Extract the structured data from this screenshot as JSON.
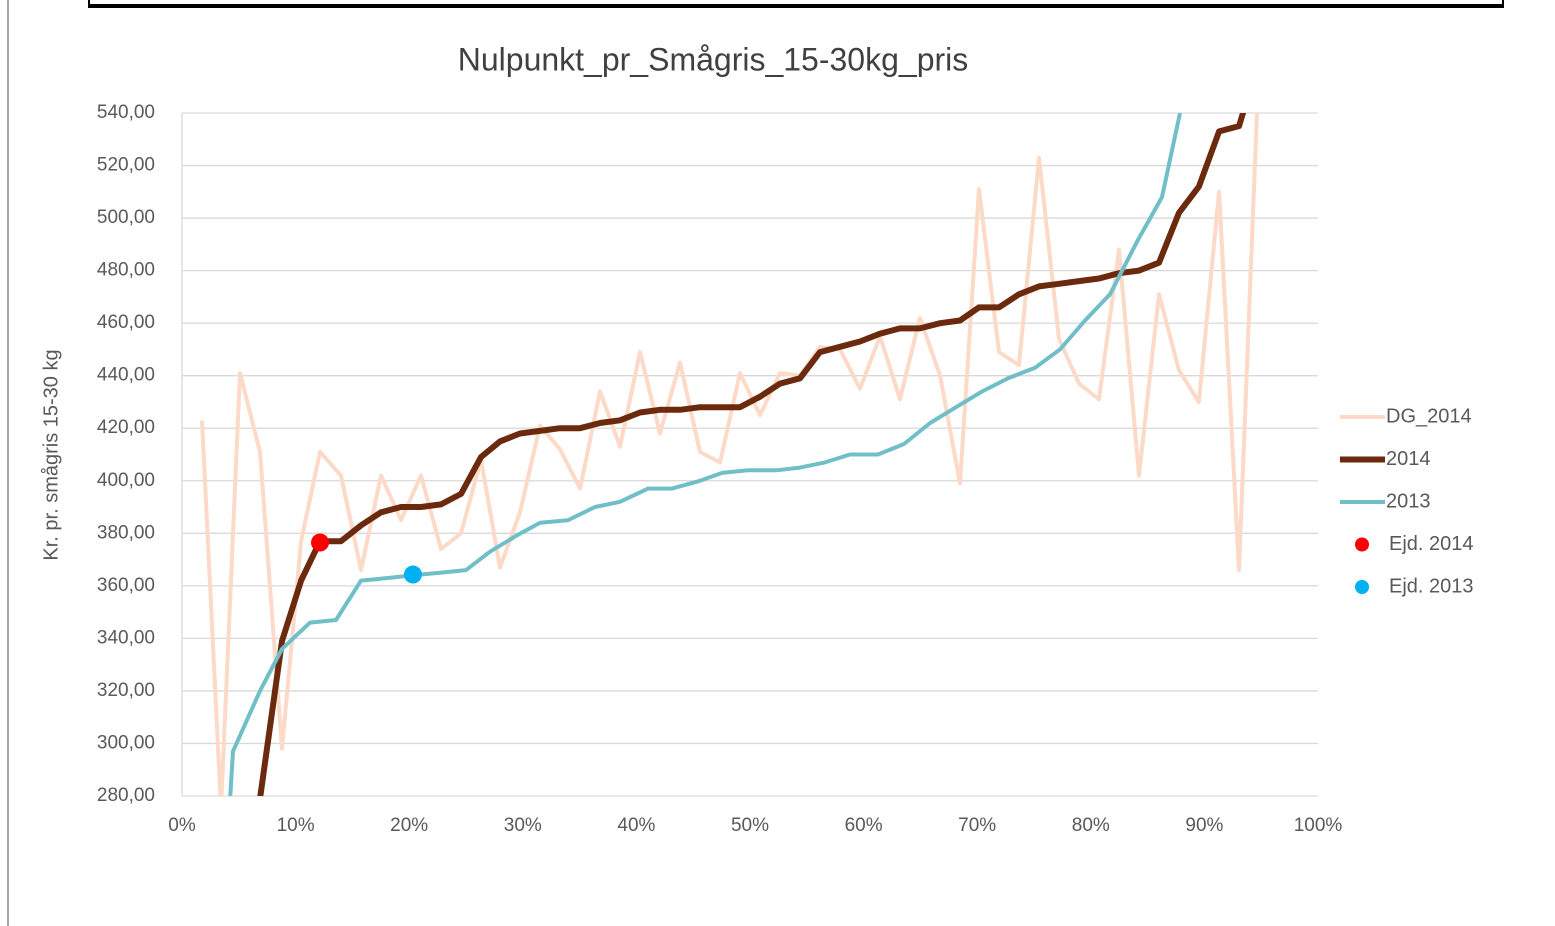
{
  "chart_data": {
    "type": "line",
    "title": "Nulpunkt_pr_Smågris_15-30kg_pris",
    "y_label": "Kr. pr. smågris 15-30 kg",
    "xlim": [
      0,
      100
    ],
    "xticks": [
      {
        "value": 0,
        "label": "0%"
      },
      {
        "value": 10,
        "label": "10%"
      },
      {
        "value": 20,
        "label": "20%"
      },
      {
        "value": 30,
        "label": "30%"
      },
      {
        "value": 40,
        "label": "40%"
      },
      {
        "value": 50,
        "label": "50%"
      },
      {
        "value": 60,
        "label": "60%"
      },
      {
        "value": 70,
        "label": "70%"
      },
      {
        "value": 80,
        "label": "80%"
      },
      {
        "value": 90,
        "label": "90%"
      },
      {
        "value": 100,
        "label": "100%"
      }
    ],
    "ylim": [
      280,
      540
    ],
    "yticks": [
      {
        "value": 280,
        "label": "280,00"
      },
      {
        "value": 300,
        "label": "300,00"
      },
      {
        "value": 320,
        "label": "320,00"
      },
      {
        "value": 340,
        "label": "340,00"
      },
      {
        "value": 360,
        "label": "360,00"
      },
      {
        "value": 380,
        "label": "380,00"
      },
      {
        "value": 400,
        "label": "400,00"
      },
      {
        "value": 420,
        "label": "420,00"
      },
      {
        "value": 440,
        "label": "440,00"
      },
      {
        "value": 460,
        "label": "460,00"
      },
      {
        "value": 480,
        "label": "480,00"
      },
      {
        "value": 500,
        "label": "500,00"
      },
      {
        "value": 520,
        "label": "520,00"
      },
      {
        "value": 540,
        "label": "540,00"
      }
    ],
    "grid": true,
    "legend": "right",
    "series": [
      {
        "name": "DG_2014",
        "type": "line",
        "color": "#fcdac7",
        "width": 4,
        "x": [
          1.76,
          3.43,
          5.11,
          6.87,
          8.8,
          10.48,
          12.15,
          14.0,
          15.76,
          17.52,
          19.28,
          21.04,
          22.8,
          24.56,
          26.32,
          27.99,
          29.75,
          31.51,
          33.27,
          35.04,
          36.8,
          38.56,
          40.32,
          42.08,
          43.84,
          45.6,
          47.36,
          49.12,
          50.88,
          52.64,
          54.4,
          56.16,
          57.92,
          59.68,
          61.44,
          63.2,
          64.96,
          66.73,
          68.49,
          70.16,
          71.92,
          73.68,
          75.44,
          77.2,
          78.96,
          80.72,
          82.48,
          84.24,
          86.0,
          87.76,
          89.52,
          91.29,
          93.05,
          94.81
        ],
        "values": [
          423,
          275,
          441,
          411,
          298,
          377,
          411,
          402,
          366,
          402,
          385,
          402,
          374,
          380,
          408,
          367,
          388,
          421,
          412,
          397,
          434,
          413,
          449,
          418,
          445,
          411,
          407,
          441,
          425,
          441,
          440,
          451,
          450,
          435,
          455,
          431,
          462,
          440,
          399,
          511,
          449,
          444,
          523,
          454,
          437,
          431,
          488,
          402,
          471,
          442,
          430,
          510,
          366,
          560
        ]
      },
      {
        "name": "2014",
        "type": "line",
        "color": "#6b2a0e",
        "width": 6,
        "x": [
          6.87,
          8.8,
          10.48,
          12.15,
          14.0,
          15.76,
          17.52,
          19.28,
          21.04,
          22.8,
          24.56,
          26.32,
          27.99,
          29.75,
          31.51,
          33.27,
          35.04,
          36.8,
          38.56,
          40.32,
          42.08,
          43.84,
          45.6,
          47.36,
          49.12,
          50.88,
          52.64,
          54.4,
          56.16,
          57.92,
          59.68,
          61.44,
          63.2,
          64.96,
          66.73,
          68.49,
          70.16,
          71.92,
          73.68,
          75.44,
          77.2,
          78.96,
          80.72,
          82.48,
          84.24,
          86.0,
          87.76,
          89.52,
          91.29,
          93.05,
          94.81
        ],
        "values": [
          279,
          339,
          362,
          377,
          377,
          383,
          388,
          390,
          390,
          391,
          395,
          409,
          415,
          418,
          419,
          420,
          420,
          422,
          423,
          426,
          427,
          427,
          428,
          428,
          428,
          432,
          437,
          439,
          449,
          451,
          453,
          456,
          458,
          458,
          460,
          461,
          466,
          466,
          471,
          474,
          475,
          476,
          477,
          479,
          480,
          483,
          502,
          512,
          533,
          535,
          560
        ]
      },
      {
        "name": "2013",
        "type": "line",
        "color": "#70bfc8",
        "width": 4,
        "x": [
          4.23,
          4.49,
          6.87,
          8.8,
          11.27,
          13.56,
          15.76,
          18.13,
          20.33,
          22.71,
          25.0,
          27.11,
          29.4,
          31.51,
          33.98,
          36.36,
          38.56,
          41.02,
          43.13,
          45.6,
          47.54,
          49.82,
          52.29,
          54.4,
          56.6,
          58.8,
          61.27,
          63.56,
          65.85,
          68.13,
          70.42,
          72.71,
          75.09,
          77.29,
          79.49,
          81.69,
          84.07,
          86.27,
          87.85
        ],
        "values": [
          279,
          297,
          320,
          336,
          346,
          347,
          362,
          363,
          364,
          365,
          366,
          373,
          379,
          384,
          385,
          390,
          392,
          397,
          397,
          400,
          403,
          404,
          404,
          405,
          407,
          410,
          410,
          414,
          422,
          428,
          434,
          439,
          443,
          450,
          461,
          471,
          491,
          508,
          540
        ]
      },
      {
        "name": "Ejd. 2014",
        "type": "scatter",
        "color": "#ff0000",
        "x": [
          12.15
        ],
        "values": [
          376.5
        ]
      },
      {
        "name": "Ejd. 2013",
        "type": "scatter",
        "color": "#00b0f0",
        "x": [
          20.33
        ],
        "values": [
          364.3
        ]
      }
    ]
  }
}
